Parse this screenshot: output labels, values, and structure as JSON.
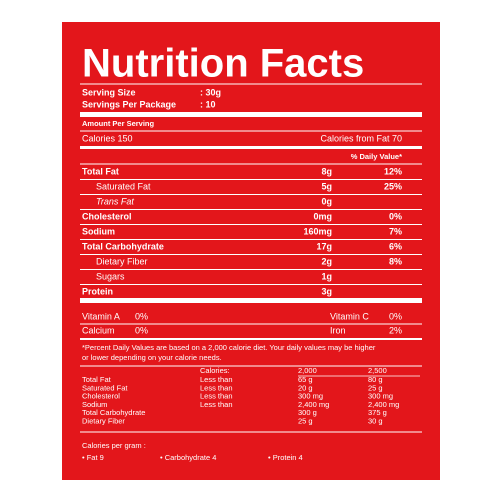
{
  "title": "Nutrition Facts",
  "serving": [
    {
      "label": "Serving Size",
      "value": ": 30g"
    },
    {
      "label": "Servings Per Package",
      "value": ": 10"
    }
  ],
  "amount_header": "Amount Per Serving",
  "calories": "Calories  150",
  "calories_from_fat": "Calories from Fat 70",
  "dv_header": "% Daily Value*",
  "nutrients": [
    {
      "name": "Total Fat",
      "amount": "8g",
      "dv": "12%"
    },
    {
      "name": "Saturated Fat",
      "amount": "5g",
      "dv": "25%"
    },
    {
      "name": "Trans Fat",
      "amount": "0g"
    },
    {
      "name": "Cholesterol",
      "amount": "0mg",
      "dv": "0%"
    },
    {
      "name": "Sodium",
      "amount": "160mg",
      "dv": "7%"
    },
    {
      "name": "Total Carbohydrate",
      "amount": "17g",
      "dv": "6%"
    },
    {
      "name": "Dietary Fiber",
      "amount": "2g",
      "dv": "8%"
    },
    {
      "name": "Sugars",
      "amount": "1g"
    },
    {
      "name": "Protein",
      "amount": "3g"
    }
  ],
  "vitamins": [
    [
      "Vitamin A",
      "0%",
      "Vitamin C",
      "0%"
    ],
    [
      "Calcium",
      "0%",
      "Iron",
      "2%"
    ]
  ],
  "footnote": [
    "*Percent Daily Values are based on a 2,000 calorie diet. Your daily  values may be higher",
    "or lower depending on your calorie needs."
  ],
  "dv_table": {
    "header": [
      "Calories:",
      "2,000",
      "2,500"
    ],
    "rows": [
      [
        "Total Fat",
        "Less than",
        "65 g",
        "80 g"
      ],
      [
        "Saturated Fat",
        "Less than",
        "20 g",
        "25 g"
      ],
      [
        "Cholesterol",
        "Less than",
        "300 mg",
        "300 mg"
      ],
      [
        "Sodium",
        "Less than",
        "2,400 mg",
        "2,400 mg"
      ],
      [
        "Total Carbohydrate",
        "300 g",
        "375 g"
      ],
      [
        "Dietary Fiber",
        "25 g",
        "30 g"
      ]
    ]
  },
  "calories_per_gram": {
    "label": "Calories per gram :",
    "items": [
      "• Fat   9",
      "• Carbohydrate  4",
      "• Protein  4"
    ]
  }
}
